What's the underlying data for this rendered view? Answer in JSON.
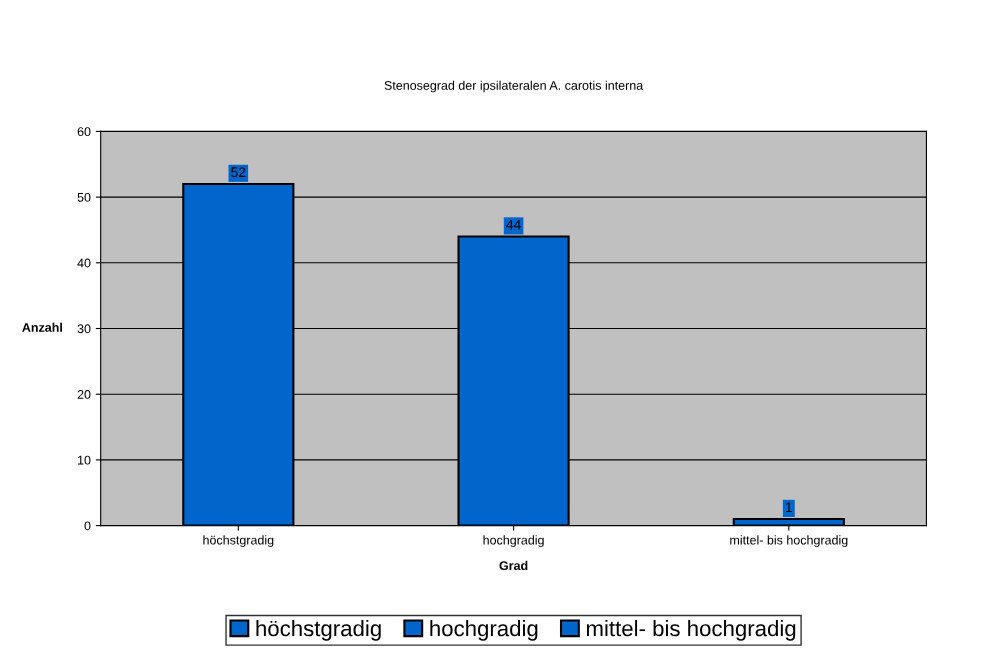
{
  "chart_data": {
    "type": "bar",
    "title": "Stenosegrad der ipsilateralen A. carotis interna",
    "xlabel": "Grad",
    "ylabel": "Anzahl",
    "categories": [
      "höchstgradig",
      "hochgradig",
      "mittel- bis hochgradig"
    ],
    "series": [
      {
        "name": "höchstgradig",
        "color": "#0066cc",
        "values": [
          52,
          null,
          null
        ]
      },
      {
        "name": "hochgradig",
        "color": "#0066cc",
        "values": [
          null,
          44,
          null
        ]
      },
      {
        "name": "mittel- bis hochgradig",
        "color": "#0066cc",
        "values": [
          null,
          null,
          1
        ]
      }
    ],
    "ylim": [
      0,
      60
    ],
    "yticks": [
      0,
      10,
      20,
      30,
      40,
      50,
      60
    ],
    "grid": "y",
    "data_labels": true,
    "legend": "bottom"
  }
}
